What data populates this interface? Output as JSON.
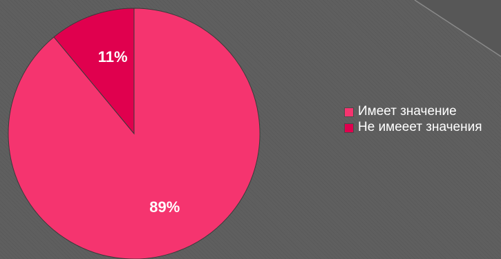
{
  "chart_data": {
    "type": "pie",
    "categories": [
      "Имеет значение",
      "Не имееет значения"
    ],
    "values": [
      89,
      11
    ],
    "labels": [
      "89%",
      "11%"
    ],
    "colors": [
      "#f5346f",
      "#e0004e"
    ],
    "title": "",
    "legend_position": "right"
  }
}
